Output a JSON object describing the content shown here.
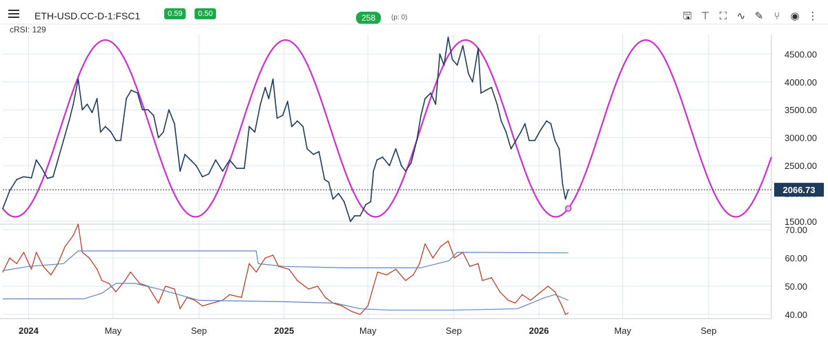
{
  "header": {
    "symbol": "ETH-USD.CC-D-1:FSC1",
    "indicator_label": "cRSI: 129",
    "badge_1": "0.59",
    "badge_2": "0.50",
    "cycle_length": "258",
    "phase_text": "(p: 0)",
    "toolbar_icons": [
      "save-icon",
      "pin-icon",
      "fullscreen-icon",
      "trend-icon",
      "draw-icon",
      "fork-icon",
      "eye-icon",
      "more-icon"
    ]
  },
  "colors": {
    "price": "#1f3b5a",
    "cycle": "#cc2fd0",
    "crsi": "#b8402a",
    "bands": "#5b84c4",
    "last_price_bg": "#1f3b5a",
    "badge": "#1fa84a"
  },
  "chart_data": [
    {
      "type": "line",
      "panel": "price",
      "y_ticks": [
        1500,
        2000,
        2500,
        3000,
        3500,
        4000,
        4500
      ],
      "y_tick_labels": [
        "1500.00",
        "2000.00",
        "2500.00",
        "3000.00",
        "3500.00",
        "4000.00",
        "4500.00"
      ],
      "ylim": [
        1450,
        4850
      ],
      "x_ticks": [
        {
          "label": "2024",
          "date": "2024-01-01",
          "bold": true
        },
        {
          "label": "May",
          "date": "2024-05-01",
          "bold": false
        },
        {
          "label": "Sep",
          "date": "2024-09-01",
          "bold": false
        },
        {
          "label": "2025",
          "date": "2025-01-01",
          "bold": true
        },
        {
          "label": "May",
          "date": "2025-05-01",
          "bold": false
        },
        {
          "label": "Sep",
          "date": "2025-09-01",
          "bold": false
        },
        {
          "label": "2026",
          "date": "2026-01-01",
          "bold": true
        },
        {
          "label": "May",
          "date": "2026-05-01",
          "bold": false
        },
        {
          "label": "Sep",
          "date": "2026-09-01",
          "bold": false
        }
      ],
      "last_price": "2066.73",
      "last_value": 2066.73,
      "cycle": {
        "period_days": 258,
        "high": 4750,
        "low": 1580,
        "peak_date": "2024-04-20",
        "extends_to": "2026-11-30",
        "marker_date": "2026-02-12"
      },
      "series": [
        {
          "kind": "price",
          "points": [
            [
              "2023-11-25",
              1730
            ],
            [
              "2023-12-05",
              2050
            ],
            [
              "2023-12-15",
              2250
            ],
            [
              "2023-12-25",
              2300
            ],
            [
              "2024-01-05",
              2280
            ],
            [
              "2024-01-12",
              2600
            ],
            [
              "2024-01-20",
              2450
            ],
            [
              "2024-01-28",
              2270
            ],
            [
              "2024-02-05",
              2300
            ],
            [
              "2024-02-12",
              2600
            ],
            [
              "2024-02-20",
              2950
            ],
            [
              "2024-02-28",
              3300
            ],
            [
              "2024-03-05",
              3600
            ],
            [
              "2024-03-12",
              4050
            ],
            [
              "2024-03-18",
              3500
            ],
            [
              "2024-03-25",
              3600
            ],
            [
              "2024-04-01",
              3450
            ],
            [
              "2024-04-08",
              3700
            ],
            [
              "2024-04-13",
              3100
            ],
            [
              "2024-04-20",
              3200
            ],
            [
              "2024-04-28",
              3100
            ],
            [
              "2024-05-05",
              2950
            ],
            [
              "2024-05-12",
              2950
            ],
            [
              "2024-05-20",
              3700
            ],
            [
              "2024-05-27",
              3850
            ],
            [
              "2024-06-05",
              3800
            ],
            [
              "2024-06-12",
              3500
            ],
            [
              "2024-06-20",
              3500
            ],
            [
              "2024-06-28",
              3400
            ],
            [
              "2024-07-05",
              3000
            ],
            [
              "2024-07-12",
              3100
            ],
            [
              "2024-07-20",
              3500
            ],
            [
              "2024-07-28",
              3250
            ],
            [
              "2024-08-05",
              2400
            ],
            [
              "2024-08-12",
              2700
            ],
            [
              "2024-08-20",
              2600
            ],
            [
              "2024-08-28",
              2500
            ],
            [
              "2024-09-06",
              2300
            ],
            [
              "2024-09-15",
              2350
            ],
            [
              "2024-09-25",
              2600
            ],
            [
              "2024-10-05",
              2400
            ],
            [
              "2024-10-15",
              2600
            ],
            [
              "2024-10-25",
              2450
            ],
            [
              "2024-11-05",
              2450
            ],
            [
              "2024-11-12",
              3200
            ],
            [
              "2024-11-20",
              3100
            ],
            [
              "2024-11-28",
              3600
            ],
            [
              "2024-12-05",
              3900
            ],
            [
              "2024-12-10",
              3700
            ],
            [
              "2024-12-16",
              4050
            ],
            [
              "2024-12-22",
              3350
            ],
            [
              "2024-12-30",
              3400
            ],
            [
              "2025-01-06",
              3650
            ],
            [
              "2025-01-12",
              3200
            ],
            [
              "2025-01-20",
              3300
            ],
            [
              "2025-01-28",
              3200
            ],
            [
              "2025-02-03",
              2800
            ],
            [
              "2025-02-12",
              2700
            ],
            [
              "2025-02-20",
              2750
            ],
            [
              "2025-02-28",
              2250
            ],
            [
              "2025-03-06",
              2200
            ],
            [
              "2025-03-12",
              1900
            ],
            [
              "2025-03-20",
              2000
            ],
            [
              "2025-03-28",
              1850
            ],
            [
              "2025-04-06",
              1500
            ],
            [
              "2025-04-12",
              1600
            ],
            [
              "2025-04-20",
              1600
            ],
            [
              "2025-04-28",
              1800
            ],
            [
              "2025-05-05",
              1850
            ],
            [
              "2025-05-09",
              2400
            ],
            [
              "2025-05-14",
              2600
            ],
            [
              "2025-05-22",
              2650
            ],
            [
              "2025-06-01",
              2500
            ],
            [
              "2025-06-10",
              2800
            ],
            [
              "2025-06-18",
              2500
            ],
            [
              "2025-06-24",
              2400
            ],
            [
              "2025-07-02",
              2550
            ],
            [
              "2025-07-10",
              2950
            ],
            [
              "2025-07-16",
              3400
            ],
            [
              "2025-07-22",
              3700
            ],
            [
              "2025-07-30",
              3800
            ],
            [
              "2025-08-06",
              3600
            ],
            [
              "2025-08-12",
              4500
            ],
            [
              "2025-08-18",
              4300
            ],
            [
              "2025-08-24",
              4800
            ],
            [
              "2025-08-30",
              4400
            ],
            [
              "2025-09-06",
              4300
            ],
            [
              "2025-09-14",
              4650
            ],
            [
              "2025-09-22",
              4150
            ],
            [
              "2025-09-28",
              4000
            ],
            [
              "2025-10-06",
              4600
            ],
            [
              "2025-10-10",
              3800
            ],
            [
              "2025-10-17",
              3850
            ],
            [
              "2025-10-25",
              3900
            ],
            [
              "2025-11-02",
              3600
            ],
            [
              "2025-11-08",
              3300
            ],
            [
              "2025-11-15",
              3100
            ],
            [
              "2025-11-22",
              2800
            ],
            [
              "2025-11-29",
              2950
            ],
            [
              "2025-12-06",
              3100
            ],
            [
              "2025-12-12",
              3250
            ],
            [
              "2025-12-18",
              2950
            ],
            [
              "2025-12-26",
              2950
            ],
            [
              "2026-01-04",
              3150
            ],
            [
              "2026-01-12",
              3300
            ],
            [
              "2026-01-18",
              3250
            ],
            [
              "2026-01-24",
              2950
            ],
            [
              "2026-01-30",
              2800
            ],
            [
              "2026-02-04",
              2150
            ],
            [
              "2026-02-08",
              1900
            ],
            [
              "2026-02-12",
              2066.73
            ]
          ]
        }
      ]
    },
    {
      "type": "line",
      "panel": "indicator",
      "name": "cRSI: 129",
      "y_ticks": [
        40,
        50,
        60,
        70
      ],
      "y_tick_labels": [
        "40.00",
        "50.00",
        "60.00",
        "70.00"
      ],
      "ylim": [
        38.5,
        72
      ],
      "series": [
        {
          "kind": "crsi",
          "points": [
            [
              "2023-11-25",
              55
            ],
            [
              "2023-12-05",
              60
            ],
            [
              "2023-12-15",
              58
            ],
            [
              "2023-12-25",
              62
            ],
            [
              "2024-01-05",
              56
            ],
            [
              "2024-01-12",
              62
            ],
            [
              "2024-01-22",
              57
            ],
            [
              "2024-02-02",
              54
            ],
            [
              "2024-02-12",
              58
            ],
            [
              "2024-02-22",
              64
            ],
            [
              "2024-03-05",
              68
            ],
            [
              "2024-03-12",
              72
            ],
            [
              "2024-03-18",
              62
            ],
            [
              "2024-03-28",
              60
            ],
            [
              "2024-04-08",
              56
            ],
            [
              "2024-04-15",
              52
            ],
            [
              "2024-04-25",
              51
            ],
            [
              "2024-05-05",
              48
            ],
            [
              "2024-05-18",
              52
            ],
            [
              "2024-05-26",
              55
            ],
            [
              "2024-06-08",
              51
            ],
            [
              "2024-06-20",
              50
            ],
            [
              "2024-07-05",
              44
            ],
            [
              "2024-07-15",
              50
            ],
            [
              "2024-07-28",
              49
            ],
            [
              "2024-08-05",
              42
            ],
            [
              "2024-08-15",
              46
            ],
            [
              "2024-08-26",
              45
            ],
            [
              "2024-09-06",
              43
            ],
            [
              "2024-09-20",
              44
            ],
            [
              "2024-10-05",
              45
            ],
            [
              "2024-10-15",
              47
            ],
            [
              "2024-11-01",
              46
            ],
            [
              "2024-11-12",
              58
            ],
            [
              "2024-11-22",
              55
            ],
            [
              "2024-12-05",
              60
            ],
            [
              "2024-12-16",
              61
            ],
            [
              "2024-12-24",
              57
            ],
            [
              "2025-01-08",
              56
            ],
            [
              "2025-01-20",
              52
            ],
            [
              "2025-02-05",
              49
            ],
            [
              "2025-02-18",
              50
            ],
            [
              "2025-03-01",
              46
            ],
            [
              "2025-03-12",
              44
            ],
            [
              "2025-03-25",
              43
            ],
            [
              "2025-04-08",
              41
            ],
            [
              "2025-04-20",
              40
            ],
            [
              "2025-05-01",
              43
            ],
            [
              "2025-05-09",
              50
            ],
            [
              "2025-05-15",
              55
            ],
            [
              "2025-05-28",
              54
            ],
            [
              "2025-06-10",
              56
            ],
            [
              "2025-06-24",
              52
            ],
            [
              "2025-07-05",
              54
            ],
            [
              "2025-07-14",
              58
            ],
            [
              "2025-07-22",
              65
            ],
            [
              "2025-08-02",
              60
            ],
            [
              "2025-08-13",
              64
            ],
            [
              "2025-08-24",
              66
            ],
            [
              "2025-09-02",
              60
            ],
            [
              "2025-09-14",
              62
            ],
            [
              "2025-09-24",
              57
            ],
            [
              "2025-10-06",
              58
            ],
            [
              "2025-10-12",
              52
            ],
            [
              "2025-10-25",
              53
            ],
            [
              "2025-11-06",
              48
            ],
            [
              "2025-11-18",
              45
            ],
            [
              "2025-11-28",
              44
            ],
            [
              "2025-12-08",
              47
            ],
            [
              "2025-12-20",
              45
            ],
            [
              "2026-01-04",
              48
            ],
            [
              "2026-01-14",
              50
            ],
            [
              "2026-01-24",
              48
            ],
            [
              "2026-02-03",
              43
            ],
            [
              "2026-02-08",
              40
            ],
            [
              "2026-02-12",
              40.5
            ]
          ]
        },
        {
          "kind": "upper_band",
          "points": [
            [
              "2023-11-25",
              55.5
            ],
            [
              "2024-01-01",
              57
            ],
            [
              "2024-02-20",
              58
            ],
            [
              "2024-03-12",
              62.5
            ],
            [
              "2024-11-22",
              62.5
            ],
            [
              "2024-11-25",
              58
            ],
            [
              "2025-01-01",
              57
            ],
            [
              "2025-04-01",
              56.5
            ],
            [
              "2025-07-15",
              56.5
            ],
            [
              "2025-08-25",
              59
            ],
            [
              "2025-09-06",
              62
            ],
            [
              "2026-02-12",
              61.8
            ]
          ]
        },
        {
          "kind": "lower_band",
          "points": [
            [
              "2023-11-25",
              45.5
            ],
            [
              "2024-02-20",
              45.5
            ],
            [
              "2024-03-20",
              45.5
            ],
            [
              "2024-04-15",
              47.5
            ],
            [
              "2024-05-05",
              51
            ],
            [
              "2024-06-01",
              51
            ],
            [
              "2024-07-05",
              49
            ],
            [
              "2024-09-01",
              45
            ],
            [
              "2025-01-01",
              44.5
            ],
            [
              "2025-03-15",
              44
            ],
            [
              "2025-04-20",
              42
            ],
            [
              "2025-06-01",
              41.5
            ],
            [
              "2025-09-01",
              41.5
            ],
            [
              "2025-12-01",
              42
            ],
            [
              "2026-01-10",
              46
            ],
            [
              "2026-01-24",
              47
            ],
            [
              "2026-02-12",
              45
            ]
          ]
        }
      ]
    }
  ]
}
